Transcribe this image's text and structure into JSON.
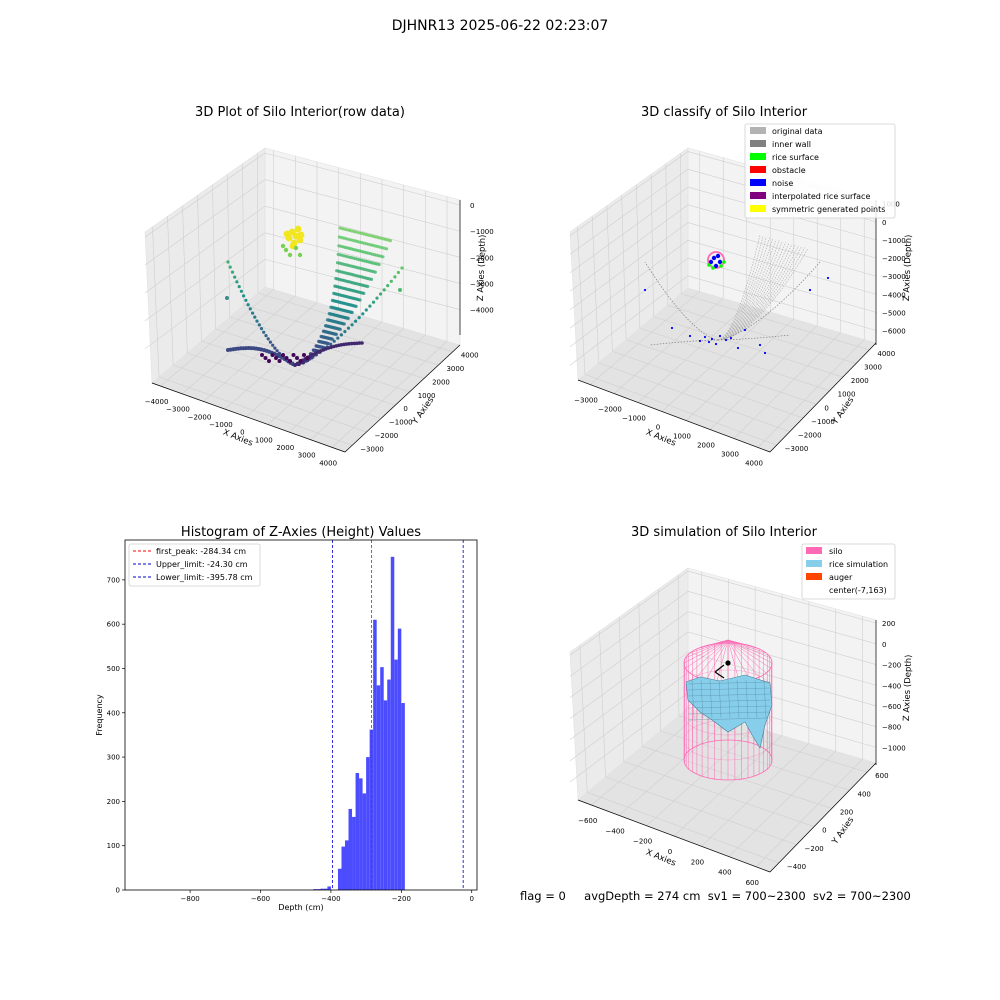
{
  "figure_title": "DJHNR13 2025-06-22 02:23:07",
  "status_line": {
    "flag": "flag = 0",
    "avg_depth": "avgDepth = 274 cm",
    "sv1": "sv1 = 700~2300",
    "sv2": "sv2 = 700~2300"
  },
  "colors": {
    "hist_bar": "#4c4cff",
    "first_peak_line": "#ff0000",
    "limit_lines": "#0000cc",
    "original_data": "#b3b3b3",
    "inner_wall": "#808080",
    "rice_surface": "#00ff00",
    "obstacle": "#ff0000",
    "noise": "#0000ff",
    "interpolated_rice_surface": "#800080",
    "symmetric_generated_points": "#ffff00",
    "silo": "#ff69b4",
    "rice_simulation": "#87ceeb",
    "auger": "#ff4500"
  },
  "chart_data": [
    {
      "type": "scatter",
      "projection": "3d",
      "title": "3D Plot of Silo Interior(row data)",
      "xlabel": "X Axies",
      "ylabel": "Y Axies",
      "zlabel": "Z Axies (Depth)",
      "x_ticks": [
        "−4000",
        "−3000",
        "−2000",
        "−1000",
        "0",
        "1000",
        "2000",
        "3000",
        "4000"
      ],
      "y_ticks": [
        "−3000",
        "−2000",
        "−1000",
        "0",
        "1000",
        "2000",
        "3000",
        "4000"
      ],
      "z_ticks": [
        "0",
        "−1000",
        "−2000",
        "−3000",
        "−4000"
      ],
      "grid": true,
      "colormap": "viridis"
    },
    {
      "type": "scatter",
      "projection": "3d",
      "title": "3D classify of Silo Interior",
      "xlabel": "X Axies",
      "ylabel": "Y Axies",
      "zlabel": "Z Axies (Depth)",
      "x_ticks": [
        "−3000",
        "−2000",
        "−1000",
        "0",
        "1000",
        "2000",
        "3000",
        "4000"
      ],
      "y_ticks": [
        "−3000",
        "−2000",
        "−1000",
        "0",
        "1000",
        "2000",
        "3000",
        "4000"
      ],
      "z_ticks": [
        "1000",
        "0",
        "−1000",
        "−2000",
        "−3000",
        "−4000",
        "−5000",
        "−6000"
      ],
      "legend": [
        "original data",
        "inner wall",
        "rice surface",
        "obstacle",
        "noise",
        "interpolated rice surface",
        "symmetric generated points"
      ],
      "legend_position": "upper-right",
      "grid": true
    },
    {
      "type": "bar",
      "title": "Histogram of Z-Axies (Height) Values",
      "xlabel": "Depth (cm)",
      "ylabel": "Frequency",
      "xlim": [
        -985,
        15
      ],
      "ylim": [
        0,
        790
      ],
      "x_ticks": [
        -800,
        -600,
        -400,
        -200,
        0
      ],
      "y_ticks": [
        0,
        100,
        200,
        300,
        400,
        500,
        600,
        700
      ],
      "bin_width": 10,
      "bins": [
        {
          "x": -445,
          "value": 2
        },
        {
          "x": -435,
          "value": 2
        },
        {
          "x": -425,
          "value": 3
        },
        {
          "x": -415,
          "value": 3
        },
        {
          "x": -405,
          "value": 8
        },
        {
          "x": -395,
          "value": 0
        },
        {
          "x": -385,
          "value": 0
        },
        {
          "x": -375,
          "value": 48
        },
        {
          "x": -365,
          "value": 98
        },
        {
          "x": -355,
          "value": 112
        },
        {
          "x": -345,
          "value": 183
        },
        {
          "x": -335,
          "value": 165
        },
        {
          "x": -325,
          "value": 264
        },
        {
          "x": -315,
          "value": 252
        },
        {
          "x": -305,
          "value": 218
        },
        {
          "x": -295,
          "value": 300
        },
        {
          "x": -285,
          "value": 362
        },
        {
          "x": -275,
          "value": 610
        },
        {
          "x": -265,
          "value": 462
        },
        {
          "x": -255,
          "value": 503
        },
        {
          "x": -245,
          "value": 428
        },
        {
          "x": -235,
          "value": 475
        },
        {
          "x": -225,
          "value": 752
        },
        {
          "x": -215,
          "value": 520
        },
        {
          "x": -205,
          "value": 590
        },
        {
          "x": -195,
          "value": 422
        }
      ],
      "ref_lines": [
        {
          "label": "first_peak: -284.34 cm",
          "x": -284.34,
          "color": "#ff0000"
        },
        {
          "label": "Upper_limit: -24.30 cm",
          "x": -24.3,
          "color": "#0000cc"
        },
        {
          "label": "Lower_limit: -395.78 cm",
          "x": -395.78,
          "color": "#0000cc"
        }
      ],
      "legend_position": "upper-left"
    },
    {
      "type": "surface",
      "projection": "3d",
      "title": "3D simulation of Silo Interior",
      "xlabel": "X Axies",
      "ylabel": "Y Axies",
      "zlabel": "Z Axies (Depth)",
      "x_ticks": [
        "−600",
        "−400",
        "−200",
        "0",
        "200",
        "400",
        "600"
      ],
      "y_ticks": [
        "−400",
        "−200",
        "0",
        "200",
        "400",
        "600"
      ],
      "z_ticks": [
        "200",
        "0",
        "−200",
        "−400",
        "−600",
        "−800",
        "−1000"
      ],
      "legend": [
        "silo",
        "rice simulation",
        "auger",
        "center(-7,163)"
      ],
      "legend_position": "upper-right",
      "grid": true
    }
  ]
}
